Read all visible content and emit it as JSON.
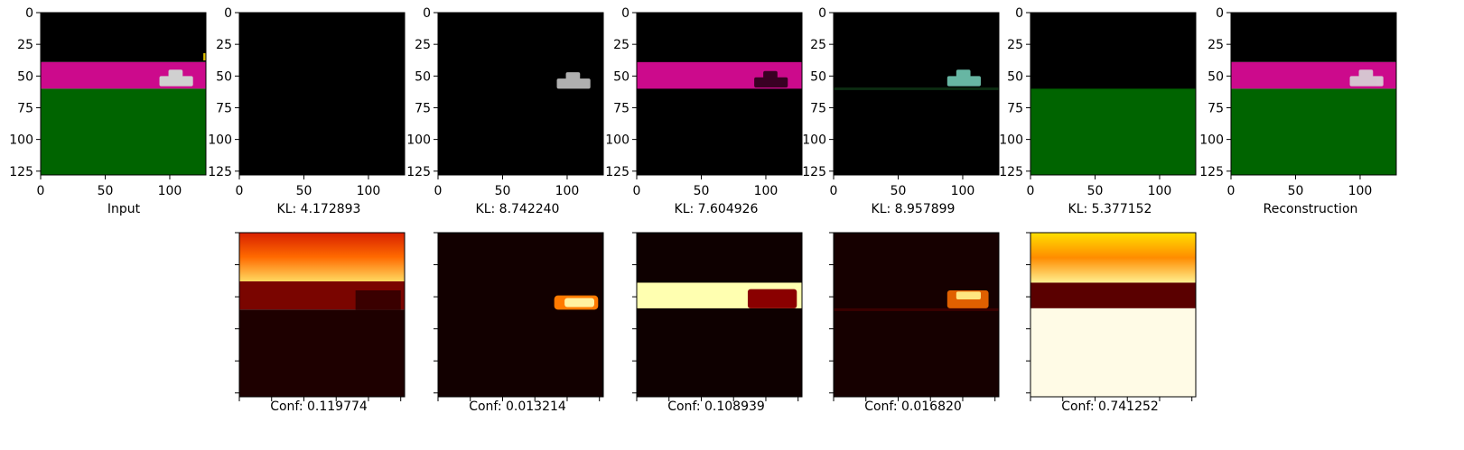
{
  "chart_data": {
    "type": "image-grid",
    "image_size": [
      128,
      128
    ],
    "x_ticks": [
      0,
      50,
      100
    ],
    "y_ticks": [
      0,
      25,
      50,
      75,
      100,
      125
    ],
    "top_row": [
      {
        "caption": "Input",
        "kind": "scene",
        "sky": "#000000",
        "band": "#cc0a8c",
        "ground": "#006400",
        "car": "#d0d0d0",
        "car_opacity": 1,
        "extra_dot": true
      },
      {
        "caption": "KL: 4.172893",
        "kind": "black"
      },
      {
        "caption": "KL: 8.742240",
        "kind": "car-only",
        "car": "#cfcfcf",
        "car_opacity": 0.85
      },
      {
        "caption": "KL: 7.604926",
        "kind": "band-only",
        "band": "#cc0a8c",
        "car": "#2a0018",
        "car_opacity": 0.9
      },
      {
        "caption": "KL: 8.957899",
        "kind": "car-green",
        "car": "#7ad6c0",
        "car_opacity": 0.85,
        "line": "#0b2a10"
      },
      {
        "caption": "KL: 5.377152",
        "kind": "ground-only",
        "ground": "#006400"
      },
      {
        "caption": "Reconstruction",
        "kind": "scene",
        "sky": "#000000",
        "band": "#cc0a8c",
        "ground": "#006400",
        "car": "#d8d8d8",
        "car_opacity": 0.9,
        "extra_dot": false
      }
    ],
    "bottom_row": [
      {
        "caption": "Conf: 0.119774",
        "confidence": 0.119774,
        "pattern": "sky"
      },
      {
        "caption": "Conf: 0.013214",
        "confidence": 0.013214,
        "pattern": "car"
      },
      {
        "caption": "Conf: 0.108939",
        "confidence": 0.108939,
        "pattern": "band"
      },
      {
        "caption": "Conf: 0.016820",
        "confidence": 0.01682,
        "pattern": "car-small"
      },
      {
        "caption": "Conf: 0.741252",
        "confidence": 0.741252,
        "pattern": "ground"
      }
    ]
  }
}
